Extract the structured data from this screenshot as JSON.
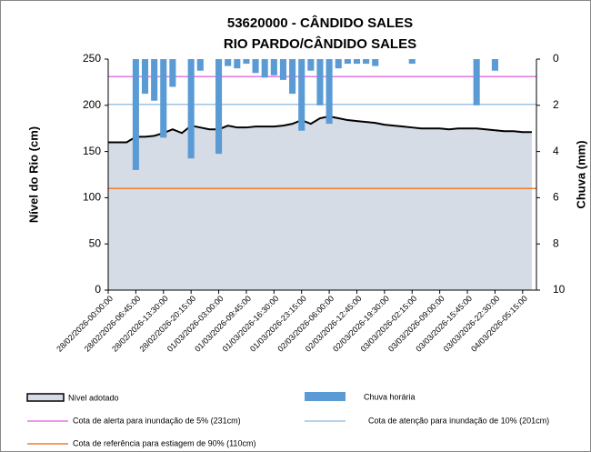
{
  "chart_data": {
    "type": "area_bar",
    "title": "53620000 - CÂNDIDO SALES",
    "subtitle": "RIO PARDO/CÂNDIDO SALES",
    "y_label": "Nível do Rio  (cm)",
    "y2_label": "Chuva (mm)",
    "categories": [
      "28/02/2026-00:00:00",
      null,
      null,
      "28/02/2026-06:45:00",
      null,
      null,
      "28/02/2026-13:30:00",
      null,
      null,
      "28/02/2026-20:15:00",
      null,
      null,
      "01/03/2026-03:00:00",
      null,
      null,
      "01/03/2026-09:45:00",
      null,
      null,
      "01/03/2026-16:30:00",
      null,
      null,
      "01/03/2026-23:15:00",
      null,
      null,
      "02/03/2026-06:00:00",
      null,
      null,
      "02/03/2026-12:45:00",
      null,
      null,
      "02/03/2026-19:30:00",
      null,
      null,
      "03/03/2026-02:15:00",
      null,
      null,
      "03/03/2026-09:00:00",
      null,
      null,
      "03/03/2026-15:45:00",
      null,
      null,
      "03/03/2026-22:30:00",
      null,
      null,
      "04/03/2026-05:15:00",
      null
    ],
    "series": [
      {
        "name": "Nível adotado",
        "kind": "area",
        "color": "#d6dce5",
        "line_color": "#000000",
        "values": [
          160,
          160,
          160,
          166,
          166,
          167,
          170,
          174,
          170,
          178,
          176,
          174,
          174,
          178,
          176,
          176,
          177,
          177,
          177,
          178,
          180,
          184,
          180,
          186,
          188,
          186,
          184,
          183,
          182,
          181,
          179,
          178,
          177,
          176,
          175,
          175,
          175,
          174,
          175,
          175,
          175,
          174,
          173,
          172,
          172,
          171,
          171
        ]
      },
      {
        "name": "Chuva horária",
        "kind": "bar",
        "axis": "y2",
        "color": "#5b9bd5",
        "values": [
          0,
          0,
          0,
          4.8,
          1.5,
          1.8,
          3.4,
          1.2,
          0,
          4.3,
          0.5,
          0,
          4.1,
          0.3,
          0.4,
          0.2,
          0.6,
          0.8,
          0.7,
          0.9,
          1.5,
          3.1,
          0.5,
          2.0,
          2.8,
          0.4,
          0.2,
          0.2,
          0.2,
          0.3,
          0,
          0,
          0,
          0.2,
          0,
          0,
          0,
          0,
          0,
          0,
          2.0,
          0,
          0.5,
          0,
          0,
          0,
          0
        ]
      }
    ],
    "reference_lines": [
      {
        "name": "Cota de alerta para inundação de 5% (231cm)",
        "value": 231,
        "color": "#e377e0"
      },
      {
        "name": "Cota de atenção para inundação de 10% (201cm)",
        "value": 201,
        "color": "#9dc3e6"
      },
      {
        "name": "Cota de referência para estiagem de 90% (110cm)",
        "value": 110,
        "color": "#ed7d31"
      }
    ],
    "ylim": [
      0,
      250
    ],
    "yticks": [
      0,
      50,
      100,
      150,
      200,
      250
    ],
    "y2lim": [
      0,
      10
    ],
    "y2ticks": [
      0,
      2,
      4,
      6,
      8,
      10
    ],
    "y2_inverted": true
  }
}
